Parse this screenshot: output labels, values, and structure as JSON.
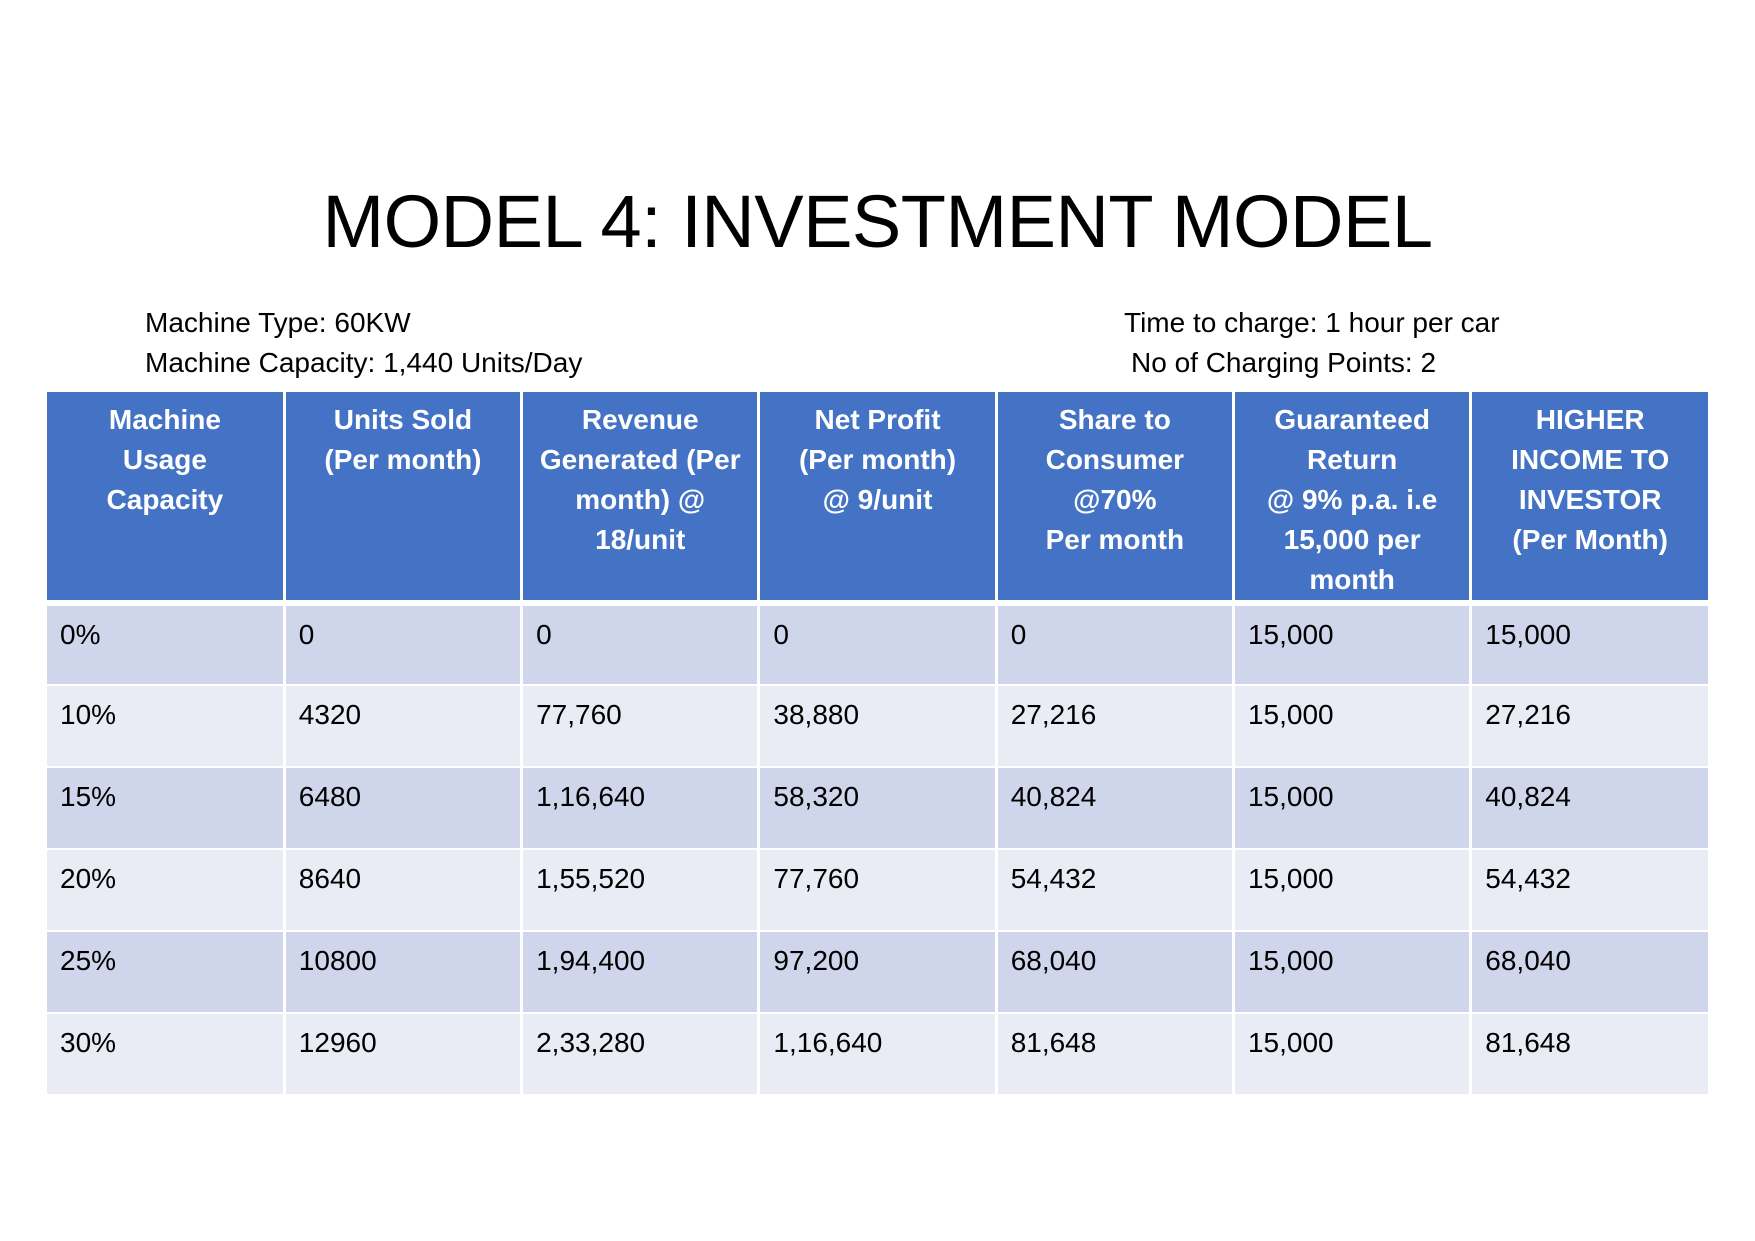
{
  "title": "MODEL 4: INVESTMENT MODEL",
  "info": {
    "machine_type": "Machine Type: 60KW",
    "machine_capacity": "Machine Capacity: 1,440 Units/Day",
    "time_to_charge": "Time to charge: 1 hour per car",
    "charging_points": "No of Charging Points: 2"
  },
  "colors": {
    "header_bg": "#4472c4",
    "row_odd": "#cfd5ea",
    "row_even": "#e9ebf5"
  },
  "table": {
    "headers": [
      "Machine\nUsage\nCapacity",
      "Units Sold\n(Per month)",
      "Revenue\nGenerated (Per\nmonth) @\n18/unit",
      "Net Profit\n(Per month)\n@ 9/unit",
      "Share to\nConsumer\n@70%\nPer month",
      "Guaranteed\nReturn\n@ 9% p.a. i.e\n15,000 per\nmonth",
      "HIGHER\nINCOME TO\nINVESTOR\n(Per Month)"
    ],
    "rows": [
      [
        "0%",
        "0",
        "0",
        "0",
        "0",
        "15,000",
        "15,000"
      ],
      [
        "10%",
        "4320",
        "77,760",
        "38,880",
        "27,216",
        "15,000",
        "27,216"
      ],
      [
        "15%",
        "6480",
        "1,16,640",
        "58,320",
        "40,824",
        "15,000",
        "40,824"
      ],
      [
        "20%",
        "8640",
        "1,55,520",
        "77,760",
        "54,432",
        "15,000",
        "54,432"
      ],
      [
        "25%",
        "10800",
        "1,94,400",
        "97,200",
        "68,040",
        "15,000",
        "68,040"
      ],
      [
        "30%",
        "12960",
        "2,33,280",
        "1,16,640",
        "81,648",
        "15,000",
        "81,648"
      ]
    ]
  }
}
